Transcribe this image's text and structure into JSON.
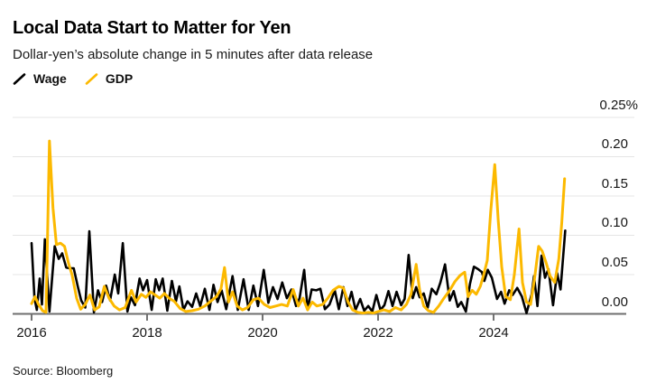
{
  "header": {
    "title": "Local Data Start to Matter for Yen",
    "subtitle": "Dollar-yen’s absolute change in 5 minutes after data release"
  },
  "source": "Source: Bloomberg",
  "colors": {
    "wage": "#000000",
    "gdp": "#FCB900",
    "gridline": "#e4e4e4",
    "axis": "#6e6e6e",
    "tick": "#444444"
  },
  "chart_data": {
    "type": "line",
    "title": "Local Data Start to Matter for Yen",
    "subtitle": "Dollar-yen’s absolute change in 5 minutes after data release",
    "unit": "%",
    "grid": "horizontal",
    "legend_position": "top-left",
    "x_range": [
      2016.0,
      2025.35
    ],
    "y_range": [
      0,
      0.25
    ],
    "x_ticks": [
      2016,
      2018,
      2020,
      2022,
      2024
    ],
    "x_tick_labels": [
      "2016",
      "2018",
      "2020",
      "2022",
      "2024"
    ],
    "y_ticks": [
      0,
      0.05,
      0.1,
      0.15,
      0.2,
      0.25
    ],
    "y_tick_labels": [
      "0.00",
      "0.05",
      "0.10",
      "0.15",
      "0.20",
      "0.25%"
    ],
    "series": [
      {
        "name": "Wage",
        "color": "#000000",
        "points": [
          [
            2016.0,
            0.09
          ],
          [
            2016.05,
            0.02
          ],
          [
            2016.09,
            0.005
          ],
          [
            2016.14,
            0.045
          ],
          [
            2016.18,
            0.012
          ],
          [
            2016.23,
            0.095
          ],
          [
            2016.31,
            0.003
          ],
          [
            2016.4,
            0.086
          ],
          [
            2016.47,
            0.07
          ],
          [
            2016.53,
            0.077
          ],
          [
            2016.6,
            0.059
          ],
          [
            2016.66,
            0.058
          ],
          [
            2016.73,
            0.058
          ],
          [
            2016.8,
            0.035
          ],
          [
            2016.86,
            0.017
          ],
          [
            2016.93,
            0.008
          ],
          [
            2017.0,
            0.105
          ],
          [
            2017.08,
            0.002
          ],
          [
            2017.15,
            0.03
          ],
          [
            2017.22,
            0.015
          ],
          [
            2017.29,
            0.036
          ],
          [
            2017.36,
            0.017
          ],
          [
            2017.44,
            0.05
          ],
          [
            2017.5,
            0.026
          ],
          [
            2017.58,
            0.09
          ],
          [
            2017.66,
            0.003
          ],
          [
            2017.72,
            0.021
          ],
          [
            2017.79,
            0.011
          ],
          [
            2017.87,
            0.045
          ],
          [
            2017.93,
            0.03
          ],
          [
            2018.0,
            0.043
          ],
          [
            2018.08,
            0.005
          ],
          [
            2018.15,
            0.044
          ],
          [
            2018.21,
            0.03
          ],
          [
            2018.27,
            0.045
          ],
          [
            2018.35,
            0.004
          ],
          [
            2018.43,
            0.042
          ],
          [
            2018.5,
            0.016
          ],
          [
            2018.56,
            0.035
          ],
          [
            2018.63,
            0.005
          ],
          [
            2018.7,
            0.016
          ],
          [
            2018.78,
            0.009
          ],
          [
            2018.85,
            0.026
          ],
          [
            2018.92,
            0.01
          ],
          [
            2019.0,
            0.032
          ],
          [
            2019.08,
            0.005
          ],
          [
            2019.15,
            0.037
          ],
          [
            2019.22,
            0.015
          ],
          [
            2019.29,
            0.03
          ],
          [
            2019.37,
            0.006
          ],
          [
            2019.48,
            0.048
          ],
          [
            2019.57,
            0.005
          ],
          [
            2019.67,
            0.044
          ],
          [
            2019.76,
            0.005
          ],
          [
            2019.84,
            0.036
          ],
          [
            2019.92,
            0.01
          ],
          [
            2020.02,
            0.056
          ],
          [
            2020.1,
            0.014
          ],
          [
            2020.18,
            0.034
          ],
          [
            2020.26,
            0.019
          ],
          [
            2020.34,
            0.04
          ],
          [
            2020.42,
            0.02
          ],
          [
            2020.5,
            0.031
          ],
          [
            2020.58,
            0.01
          ],
          [
            2020.64,
            0.02
          ],
          [
            2020.72,
            0.056
          ],
          [
            2020.78,
            0.006
          ],
          [
            2020.85,
            0.031
          ],
          [
            2020.93,
            0.03
          ],
          [
            2021.0,
            0.032
          ],
          [
            2021.08,
            0.006
          ],
          [
            2021.16,
            0.012
          ],
          [
            2021.25,
            0.03
          ],
          [
            2021.32,
            0.006
          ],
          [
            2021.4,
            0.034
          ],
          [
            2021.47,
            0.01
          ],
          [
            2021.54,
            0.028
          ],
          [
            2021.61,
            0.005
          ],
          [
            2021.69,
            0.019
          ],
          [
            2021.76,
            0.004
          ],
          [
            2021.83,
            0.01
          ],
          [
            2021.9,
            0.003
          ],
          [
            2021.97,
            0.024
          ],
          [
            2022.04,
            0.005
          ],
          [
            2022.11,
            0.011
          ],
          [
            2022.18,
            0.029
          ],
          [
            2022.25,
            0.01
          ],
          [
            2022.32,
            0.028
          ],
          [
            2022.4,
            0.011
          ],
          [
            2022.46,
            0.019
          ],
          [
            2022.53,
            0.075
          ],
          [
            2022.6,
            0.02
          ],
          [
            2022.66,
            0.034
          ],
          [
            2022.72,
            0.021
          ],
          [
            2022.79,
            0.026
          ],
          [
            2022.86,
            0.008
          ],
          [
            2022.93,
            0.032
          ],
          [
            2023.01,
            0.025
          ],
          [
            2023.08,
            0.04
          ],
          [
            2023.16,
            0.063
          ],
          [
            2023.24,
            0.017
          ],
          [
            2023.31,
            0.029
          ],
          [
            2023.38,
            0.009
          ],
          [
            2023.44,
            0.015
          ],
          [
            2023.52,
            0.003
          ],
          [
            2023.59,
            0.038
          ],
          [
            2023.66,
            0.06
          ],
          [
            2023.73,
            0.057
          ],
          [
            2023.8,
            0.053
          ],
          [
            2023.84,
            0.042
          ],
          [
            2023.9,
            0.056
          ],
          [
            2023.97,
            0.046
          ],
          [
            2024.06,
            0.019
          ],
          [
            2024.13,
            0.028
          ],
          [
            2024.19,
            0.013
          ],
          [
            2024.27,
            0.03
          ],
          [
            2024.33,
            0.024
          ],
          [
            2024.41,
            0.033
          ],
          [
            2024.49,
            0.022
          ],
          [
            2024.57,
            0.001
          ],
          [
            2024.66,
            0.025
          ],
          [
            2024.7,
            0.048
          ],
          [
            2024.76,
            0.01
          ],
          [
            2024.83,
            0.074
          ],
          [
            2024.89,
            0.046
          ],
          [
            2024.95,
            0.057
          ],
          [
            2025.03,
            0.011
          ],
          [
            2025.1,
            0.052
          ],
          [
            2025.16,
            0.031
          ],
          [
            2025.24,
            0.106
          ]
        ]
      },
      {
        "name": "GDP",
        "color": "#FCB900",
        "points": [
          [
            2016.0,
            0.013
          ],
          [
            2016.06,
            0.022
          ],
          [
            2016.12,
            0.012
          ],
          [
            2016.19,
            0.004
          ],
          [
            2016.25,
            0.002
          ],
          [
            2016.31,
            0.22
          ],
          [
            2016.37,
            0.135
          ],
          [
            2016.43,
            0.088
          ],
          [
            2016.5,
            0.09
          ],
          [
            2016.57,
            0.086
          ],
          [
            2016.64,
            0.064
          ],
          [
            2016.7,
            0.05
          ],
          [
            2016.78,
            0.02
          ],
          [
            2016.85,
            0.006
          ],
          [
            2016.93,
            0.012
          ],
          [
            2017.01,
            0.024
          ],
          [
            2017.09,
            0.005
          ],
          [
            2017.17,
            0.009
          ],
          [
            2017.26,
            0.035
          ],
          [
            2017.34,
            0.02
          ],
          [
            2017.43,
            0.01
          ],
          [
            2017.52,
            0.005
          ],
          [
            2017.62,
            0.008
          ],
          [
            2017.73,
            0.03
          ],
          [
            2017.81,
            0.015
          ],
          [
            2017.9,
            0.025
          ],
          [
            2017.98,
            0.021
          ],
          [
            2018.06,
            0.028
          ],
          [
            2018.14,
            0.024
          ],
          [
            2018.22,
            0.02
          ],
          [
            2018.3,
            0.026
          ],
          [
            2018.38,
            0.02
          ],
          [
            2018.47,
            0.016
          ],
          [
            2018.57,
            0.007
          ],
          [
            2018.67,
            0.003
          ],
          [
            2018.78,
            0.004
          ],
          [
            2018.89,
            0.006
          ],
          [
            2019.0,
            0.01
          ],
          [
            2019.1,
            0.016
          ],
          [
            2019.2,
            0.022
          ],
          [
            2019.28,
            0.032
          ],
          [
            2019.34,
            0.059
          ],
          [
            2019.41,
            0.015
          ],
          [
            2019.48,
            0.028
          ],
          [
            2019.56,
            0.01
          ],
          [
            2019.65,
            0.005
          ],
          [
            2019.74,
            0.008
          ],
          [
            2019.84,
            0.018
          ],
          [
            2019.93,
            0.02
          ],
          [
            2020.03,
            0.012
          ],
          [
            2020.13,
            0.008
          ],
          [
            2020.23,
            0.01
          ],
          [
            2020.33,
            0.012
          ],
          [
            2020.43,
            0.01
          ],
          [
            2020.53,
            0.031
          ],
          [
            2020.62,
            0.01
          ],
          [
            2020.7,
            0.02
          ],
          [
            2020.78,
            0.005
          ],
          [
            2020.86,
            0.015
          ],
          [
            2020.94,
            0.01
          ],
          [
            2021.04,
            0.012
          ],
          [
            2021.13,
            0.02
          ],
          [
            2021.22,
            0.03
          ],
          [
            2021.32,
            0.035
          ],
          [
            2021.4,
            0.033
          ],
          [
            2021.48,
            0.015
          ],
          [
            2021.56,
            0.005
          ],
          [
            2021.65,
            0.002
          ],
          [
            2021.74,
            0.001
          ],
          [
            2021.83,
            0.002
          ],
          [
            2021.92,
            0.001
          ],
          [
            2022.0,
            0.003
          ],
          [
            2022.1,
            0.005
          ],
          [
            2022.2,
            0.003
          ],
          [
            2022.3,
            0.008
          ],
          [
            2022.4,
            0.005
          ],
          [
            2022.49,
            0.012
          ],
          [
            2022.57,
            0.025
          ],
          [
            2022.66,
            0.063
          ],
          [
            2022.72,
            0.03
          ],
          [
            2022.79,
            0.01
          ],
          [
            2022.87,
            0.004
          ],
          [
            2022.96,
            0.002
          ],
          [
            2023.05,
            0.01
          ],
          [
            2023.14,
            0.02
          ],
          [
            2023.24,
            0.03
          ],
          [
            2023.33,
            0.041
          ],
          [
            2023.42,
            0.049
          ],
          [
            2023.5,
            0.053
          ],
          [
            2023.56,
            0.022
          ],
          [
            2023.63,
            0.03
          ],
          [
            2023.7,
            0.025
          ],
          [
            2023.77,
            0.035
          ],
          [
            2023.83,
            0.05
          ],
          [
            2023.89,
            0.068
          ],
          [
            2023.95,
            0.13
          ],
          [
            2024.02,
            0.19
          ],
          [
            2024.08,
            0.12
          ],
          [
            2024.14,
            0.06
          ],
          [
            2024.21,
            0.022
          ],
          [
            2024.29,
            0.018
          ],
          [
            2024.36,
            0.05
          ],
          [
            2024.44,
            0.108
          ],
          [
            2024.5,
            0.04
          ],
          [
            2024.57,
            0.015
          ],
          [
            2024.64,
            0.012
          ],
          [
            2024.71,
            0.045
          ],
          [
            2024.78,
            0.086
          ],
          [
            2024.84,
            0.08
          ],
          [
            2024.91,
            0.065
          ],
          [
            2024.98,
            0.048
          ],
          [
            2025.06,
            0.04
          ],
          [
            2025.13,
            0.07
          ],
          [
            2025.18,
            0.115
          ],
          [
            2025.23,
            0.172
          ]
        ]
      }
    ]
  }
}
